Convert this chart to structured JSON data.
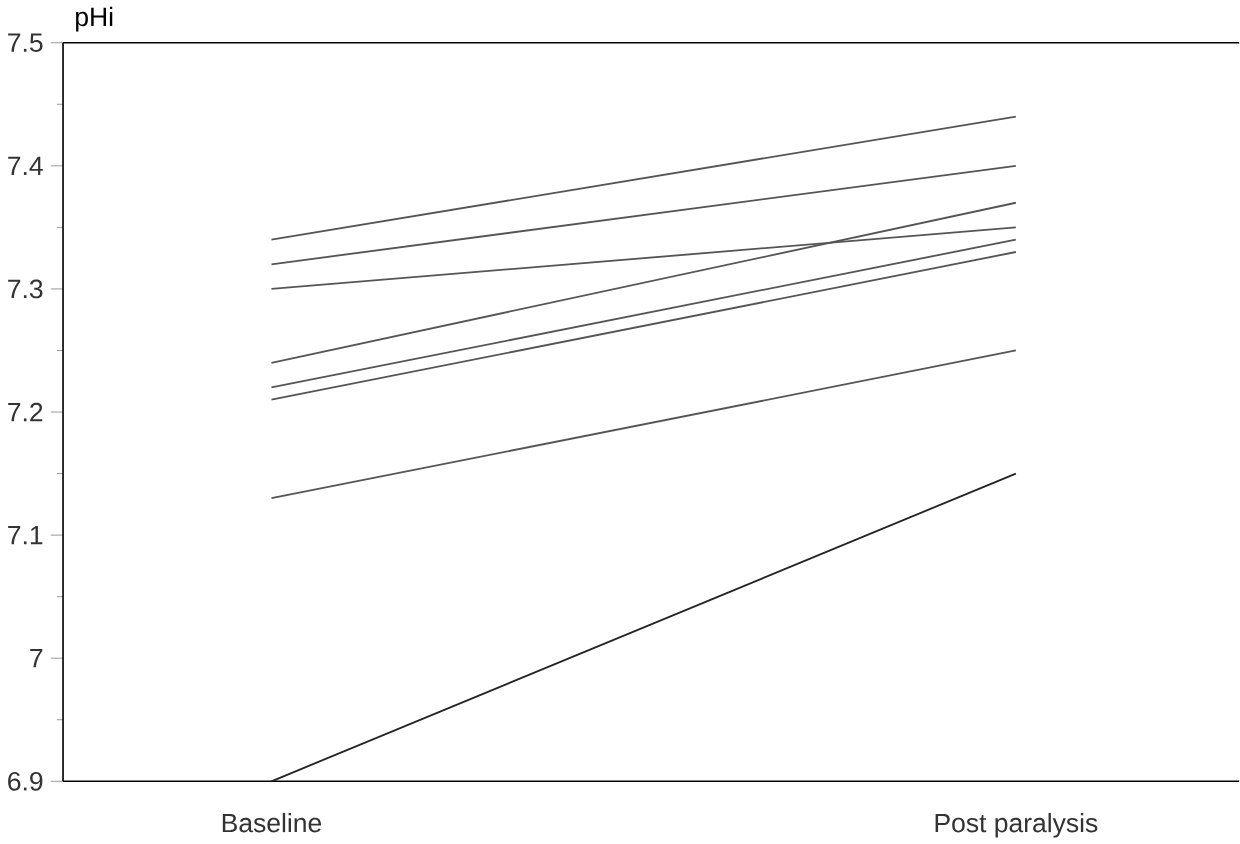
{
  "chart_data": {
    "type": "line",
    "ylabel": "pHi",
    "categories": [
      "Baseline",
      "Post paralysis"
    ],
    "ylim": [
      6.9,
      7.5
    ],
    "yticks": [
      6.9,
      {
        "value": 7.0,
        "label": "7"
      },
      7.1,
      7.2,
      7.3,
      7.4,
      7.5
    ],
    "grid": false,
    "marker": "none",
    "line_style": "solid",
    "series": [
      {
        "color": "#555555",
        "values": [
          7.34,
          7.44
        ]
      },
      {
        "color": "#555555",
        "values": [
          7.32,
          7.4
        ]
      },
      {
        "color": "#555555",
        "values": [
          7.3,
          7.35
        ]
      },
      {
        "color": "#555555",
        "values": [
          7.24,
          7.37
        ]
      },
      {
        "color": "#555555",
        "values": [
          7.22,
          7.34
        ]
      },
      {
        "color": "#555555",
        "values": [
          7.21,
          7.33
        ]
      },
      {
        "color": "#555555",
        "values": [
          7.13,
          7.25
        ]
      },
      {
        "color": "#222222",
        "values": [
          6.9,
          7.15
        ]
      }
    ]
  }
}
